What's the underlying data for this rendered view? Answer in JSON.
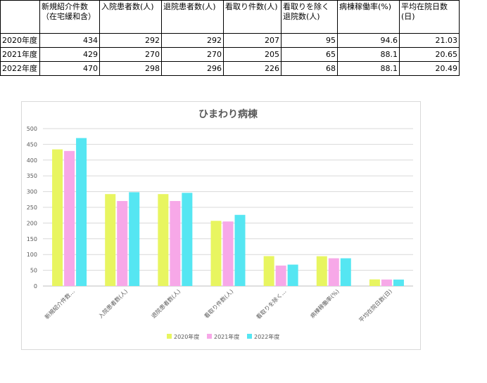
{
  "table": {
    "headers": [
      "",
      "新規紹介件数（在宅緩和含）",
      "入院患者数(人)",
      "退院患者数(人)",
      "看取り件数(人)",
      "看取りを除く退院数(人)",
      "病棟稼働率(%)",
      "平均在院日数(日)"
    ],
    "rows": [
      {
        "label": "2020年度",
        "cells": [
          "434",
          "292",
          "292",
          "207",
          "95",
          "94.6",
          "21.03"
        ]
      },
      {
        "label": "2021年度",
        "cells": [
          "429",
          "270",
          "270",
          "205",
          "65",
          "88.1",
          "20.65"
        ]
      },
      {
        "label": "2022年度",
        "cells": [
          "470",
          "298",
          "296",
          "226",
          "68",
          "88.1",
          "20.49"
        ]
      }
    ]
  },
  "chart_data": {
    "type": "bar",
    "title": "ひまわり病棟",
    "categories": [
      "新規紹介件数…",
      "入院患者数(人)",
      "退院患者数(人)",
      "看取り件数(人)",
      "看取りを除く…",
      "病棟稼働率(%)",
      "平均在院日数(日)"
    ],
    "series": [
      {
        "name": "2020年度",
        "color": "#e8f560",
        "values": [
          434,
          292,
          292,
          207,
          95,
          94.6,
          21.03
        ]
      },
      {
        "name": "2021年度",
        "color": "#f7a8e8",
        "values": [
          429,
          270,
          270,
          205,
          65,
          88.1,
          20.65
        ]
      },
      {
        "name": "2022年度",
        "color": "#55e6f2",
        "values": [
          470,
          298,
          296,
          226,
          68,
          88.1,
          20.49
        ]
      }
    ],
    "ylim": [
      0,
      500
    ],
    "yticks": [
      "0",
      "50",
      "100",
      "150",
      "200",
      "250",
      "300",
      "350",
      "400",
      "450",
      "500"
    ],
    "grid": true,
    "legend": "bottom"
  }
}
